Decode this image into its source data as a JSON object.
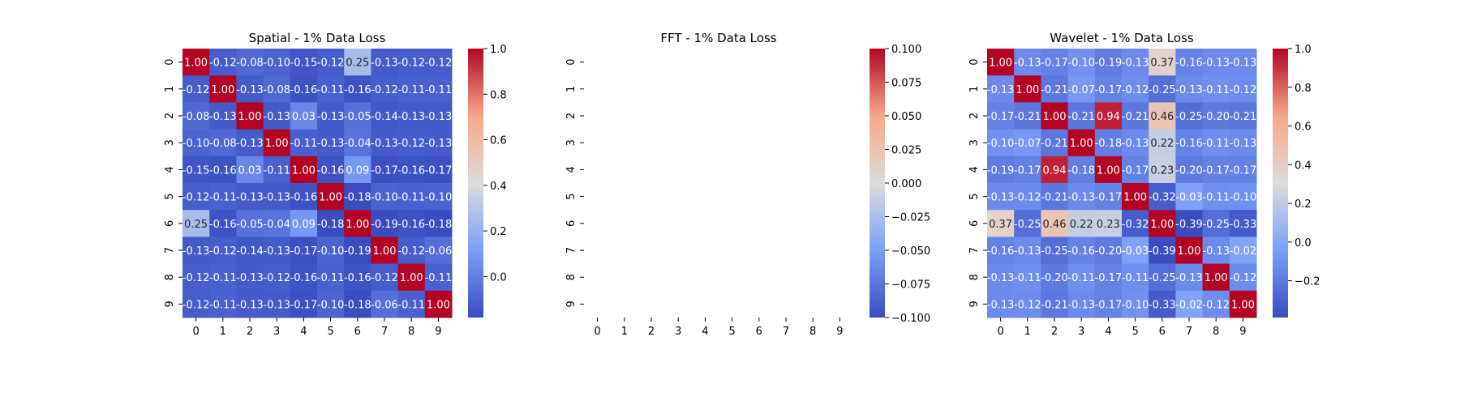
{
  "chart_data": [
    {
      "type": "heatmap",
      "title": "Spatial - 1% Data Loss",
      "x_ticks": [
        "0",
        "1",
        "2",
        "3",
        "4",
        "5",
        "6",
        "7",
        "8",
        "9"
      ],
      "y_ticks": [
        "0",
        "1",
        "2",
        "3",
        "4",
        "5",
        "6",
        "7",
        "8",
        "9"
      ],
      "colorbar_range": [
        -0.18,
        1.0
      ],
      "colorbar_ticks": [
        "1.0",
        "0.8",
        "0.6",
        "0.4",
        "0.2",
        "0.0"
      ],
      "colorbar_tick_values": [
        1.0,
        0.8,
        0.6,
        0.4,
        0.2,
        0.0
      ],
      "colormap": "coolwarm",
      "values": [
        [
          1.0,
          -0.12,
          -0.08,
          -0.1,
          -0.15,
          -0.12,
          0.25,
          -0.13,
          -0.12,
          -0.12
        ],
        [
          -0.12,
          1.0,
          -0.13,
          -0.08,
          -0.16,
          -0.11,
          -0.16,
          -0.12,
          -0.11,
          -0.11
        ],
        [
          -0.08,
          -0.13,
          1.0,
          -0.13,
          0.03,
          -0.13,
          -0.05,
          -0.14,
          -0.13,
          -0.13
        ],
        [
          -0.1,
          -0.08,
          -0.13,
          1.0,
          -0.11,
          -0.13,
          -0.04,
          -0.13,
          -0.12,
          -0.13
        ],
        [
          -0.15,
          -0.16,
          0.03,
          -0.11,
          1.0,
          -0.16,
          0.09,
          -0.17,
          -0.16,
          -0.17
        ],
        [
          -0.12,
          -0.11,
          -0.13,
          -0.13,
          -0.16,
          1.0,
          -0.18,
          -0.1,
          -0.11,
          -0.1
        ],
        [
          0.25,
          -0.16,
          -0.05,
          -0.04,
          0.09,
          -0.18,
          1.0,
          -0.19,
          -0.16,
          -0.18
        ],
        [
          -0.13,
          -0.12,
          -0.14,
          -0.13,
          -0.17,
          -0.1,
          -0.19,
          1.0,
          -0.12,
          -0.06
        ],
        [
          -0.12,
          -0.11,
          -0.13,
          -0.12,
          -0.16,
          -0.11,
          -0.16,
          -0.12,
          1.0,
          -0.11
        ],
        [
          -0.12,
          -0.11,
          -0.13,
          -0.13,
          -0.17,
          -0.1,
          -0.18,
          -0.06,
          -0.11,
          1.0
        ]
      ]
    },
    {
      "type": "heatmap",
      "title": "FFT - 1% Data Loss",
      "x_ticks": [
        "0",
        "1",
        "2",
        "3",
        "4",
        "5",
        "6",
        "7",
        "8",
        "9"
      ],
      "y_ticks": [
        "0",
        "1",
        "2",
        "3",
        "4",
        "5",
        "6",
        "7",
        "8",
        "9"
      ],
      "colorbar_range": [
        -0.1,
        0.1
      ],
      "colorbar_ticks": [
        "0.100",
        "0.075",
        "0.050",
        "0.025",
        "0.000",
        "−0.025",
        "−0.050",
        "−0.075",
        "−0.100"
      ],
      "colorbar_tick_values": [
        0.1,
        0.075,
        0.05,
        0.025,
        0.0,
        -0.025,
        -0.05,
        -0.075,
        -0.1
      ],
      "colormap": "coolwarm",
      "values": []
    },
    {
      "type": "heatmap",
      "title": "Wavelet - 1% Data Loss",
      "x_ticks": [
        "0",
        "1",
        "2",
        "3",
        "4",
        "5",
        "6",
        "7",
        "8",
        "9"
      ],
      "y_ticks": [
        "0",
        "1",
        "2",
        "3",
        "4",
        "5",
        "6",
        "7",
        "8",
        "9"
      ],
      "colorbar_range": [
        -0.39,
        1.0
      ],
      "colorbar_ticks": [
        "1.0",
        "0.8",
        "0.6",
        "0.4",
        "0.2",
        "0.0",
        "−0.2"
      ],
      "colorbar_tick_values": [
        1.0,
        0.8,
        0.6,
        0.4,
        0.2,
        0.0,
        -0.2
      ],
      "colormap": "coolwarm",
      "values": [
        [
          1.0,
          -0.13,
          -0.17,
          -0.1,
          -0.19,
          -0.13,
          0.37,
          -0.16,
          -0.13,
          -0.13
        ],
        [
          -0.13,
          1.0,
          -0.21,
          -0.07,
          -0.17,
          -0.12,
          -0.25,
          -0.13,
          -0.11,
          -0.12
        ],
        [
          -0.17,
          -0.21,
          1.0,
          -0.21,
          0.94,
          -0.21,
          0.46,
          -0.25,
          -0.2,
          -0.21
        ],
        [
          -0.1,
          -0.07,
          -0.21,
          1.0,
          -0.18,
          -0.13,
          0.22,
          -0.16,
          -0.11,
          -0.13
        ],
        [
          -0.19,
          -0.17,
          0.94,
          -0.18,
          1.0,
          -0.17,
          0.23,
          -0.2,
          -0.17,
          -0.17
        ],
        [
          -0.13,
          -0.12,
          -0.21,
          -0.13,
          -0.17,
          1.0,
          -0.32,
          -0.03,
          -0.11,
          -0.1
        ],
        [
          0.37,
          -0.25,
          0.46,
          0.22,
          0.23,
          -0.32,
          1.0,
          -0.39,
          -0.25,
          -0.33
        ],
        [
          -0.16,
          -0.13,
          -0.25,
          -0.16,
          -0.2,
          -0.03,
          -0.39,
          1.0,
          -0.13,
          -0.02
        ],
        [
          -0.13,
          -0.11,
          -0.2,
          -0.11,
          -0.17,
          -0.11,
          -0.25,
          -0.13,
          1.0,
          -0.12
        ],
        [
          -0.13,
          -0.12,
          -0.21,
          -0.13,
          -0.17,
          -0.1,
          -0.33,
          -0.02,
          -0.12,
          1.0
        ]
      ]
    }
  ]
}
